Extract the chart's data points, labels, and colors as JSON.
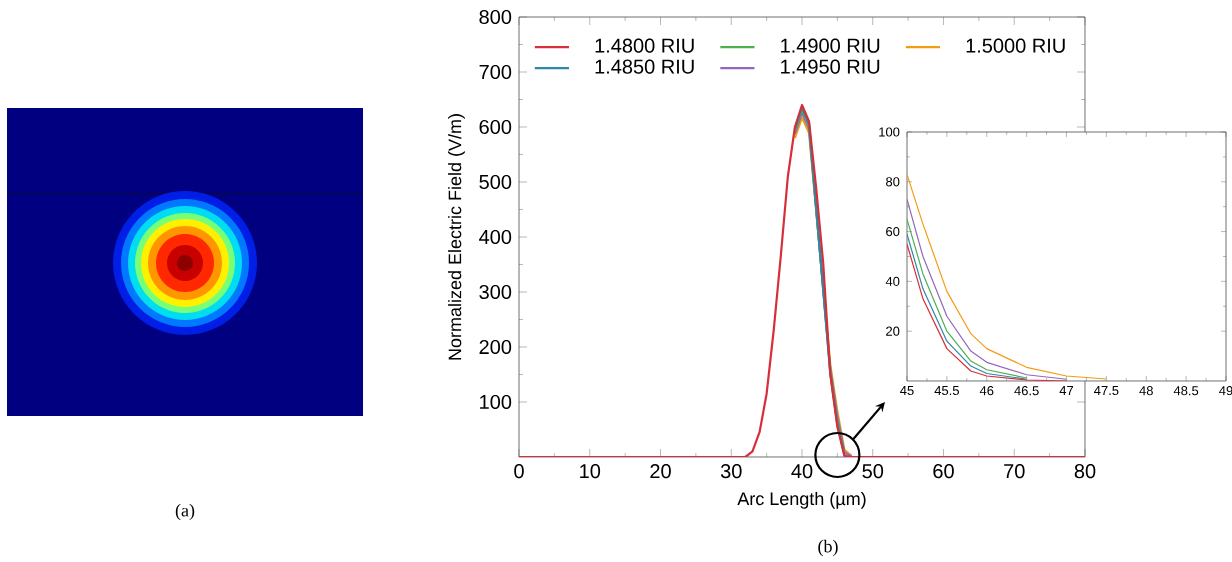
{
  "chart_data": [
    {
      "type": "other",
      "annotations": [
        "(a)"
      ]
    },
    {
      "type": "line",
      "xlabel": "Arc Length (µm)",
      "ylabel": "Normalized Electric Field (V/m)",
      "x": [
        0,
        30,
        32,
        33,
        34,
        35,
        36,
        37,
        38,
        39,
        40,
        41,
        42,
        43,
        44,
        45,
        46,
        47,
        48,
        50,
        80
      ],
      "series": [
        {
          "name": "1.4800 RIU",
          "color": "#d62f3a",
          "values": [
            0,
            0,
            0,
            10,
            45,
            115,
            230,
            365,
            510,
            600,
            640,
            610,
            490,
            352,
            150,
            55,
            2,
            0,
            0,
            0,
            0
          ]
        },
        {
          "name": "1.4850 RIU",
          "color": "#2e86ab",
          "values": [
            null,
            null,
            null,
            null,
            null,
            null,
            null,
            null,
            null,
            597,
            636,
            606,
            null,
            null,
            152,
            59,
            3,
            null,
            null,
            null,
            null
          ]
        },
        {
          "name": "1.4900 RIU",
          "color": "#4caf50",
          "values": [
            null,
            null,
            null,
            null,
            null,
            null,
            null,
            null,
            null,
            593,
            632,
            602,
            null,
            null,
            155,
            65,
            5,
            null,
            null,
            null,
            null
          ]
        },
        {
          "name": "1.4950 RIU",
          "color": "#9467bd",
          "values": [
            null,
            null,
            null,
            null,
            null,
            null,
            null,
            null,
            null,
            588,
            626,
            597,
            null,
            null,
            160,
            73,
            8,
            1,
            null,
            null,
            null
          ]
        },
        {
          "name": "1.5000 RIU",
          "color": "#f39c12",
          "values": [
            null,
            null,
            null,
            null,
            null,
            null,
            null,
            null,
            null,
            580,
            617,
            589,
            null,
            null,
            168,
            83,
            13,
            2,
            null,
            null,
            null
          ]
        }
      ],
      "xlim": [
        0,
        80
      ],
      "ylim": [
        0,
        800
      ],
      "xticks": [
        0,
        10,
        20,
        30,
        40,
        50,
        60,
        70,
        80
      ],
      "yticks": [
        100,
        200,
        300,
        400,
        500,
        600,
        700,
        800
      ],
      "legend": "top",
      "annotations": [
        "(b)"
      ]
    },
    {
      "type": "line",
      "x": [
        45,
        45.2,
        45.5,
        45.8,
        46,
        46.5,
        47,
        47.5
      ],
      "series": [
        {
          "color": "#d62f3a",
          "values": [
            55,
            33,
            13,
            4,
            2,
            0.4,
            0,
            null
          ]
        },
        {
          "color": "#2e86ab",
          "values": [
            59,
            37,
            16,
            6,
            3,
            0.7,
            null,
            null
          ]
        },
        {
          "color": "#4caf50",
          "values": [
            65,
            43,
            20,
            8,
            4.5,
            1.2,
            null,
            null
          ]
        },
        {
          "color": "#9467bd",
          "values": [
            73,
            50,
            26,
            12,
            7.5,
            2.5,
            0.7,
            null
          ]
        },
        {
          "color": "#f39c12",
          "values": [
            83,
            63,
            36,
            19,
            13,
            5.5,
            2,
            0.8
          ]
        }
      ],
      "xlim": [
        45,
        49
      ],
      "ylim": [
        0,
        100
      ],
      "xticks": [
        45,
        45.5,
        46,
        46.5,
        47,
        47.5,
        48,
        48.5,
        49
      ],
      "yticks": [
        20,
        40,
        60,
        80,
        100
      ]
    }
  ]
}
